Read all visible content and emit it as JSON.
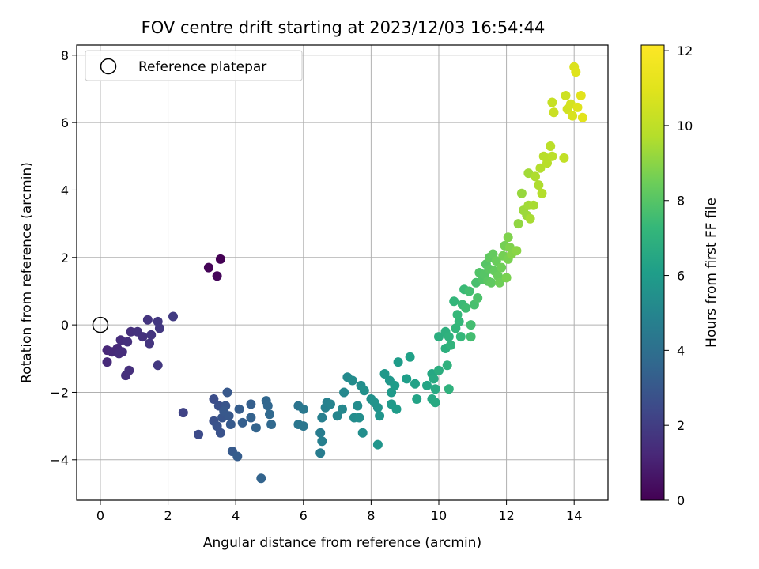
{
  "chart_data": {
    "type": "scatter",
    "title": "FOV centre drift starting at 2023/12/03 16:54:44",
    "xlabel": "Angular distance from reference (arcmin)",
    "ylabel": "Rotation from reference (arcmin)",
    "xlim": [
      -0.7,
      15.0
    ],
    "ylim": [
      -5.2,
      8.3
    ],
    "xticks": [
      0,
      2,
      4,
      6,
      8,
      10,
      12,
      14
    ],
    "yticks": [
      -4,
      -2,
      0,
      2,
      4,
      6,
      8
    ],
    "grid": true,
    "legend": {
      "position": "top-left",
      "entries": [
        "Reference platepar"
      ]
    },
    "reference_point": {
      "x": 0,
      "y": 0
    },
    "colorbar": {
      "label": "Hours from first FF file",
      "colormap": "viridis",
      "range": [
        0,
        12.15
      ],
      "ticks": [
        0,
        2,
        4,
        6,
        8,
        10,
        12
      ]
    },
    "points": [
      [
        3.55,
        1.95,
        0.0
      ],
      [
        3.2,
        1.7,
        0.1
      ],
      [
        3.45,
        1.45,
        0.2
      ],
      [
        0.2,
        -0.75,
        1.2
      ],
      [
        0.35,
        -0.8,
        1.3
      ],
      [
        0.5,
        -0.7,
        1.3
      ],
      [
        0.6,
        -0.45,
        1.4
      ],
      [
        0.2,
        -1.1,
        1.3
      ],
      [
        0.55,
        -0.85,
        1.4
      ],
      [
        0.65,
        -0.8,
        1.4
      ],
      [
        0.8,
        -0.5,
        1.5
      ],
      [
        0.9,
        -0.2,
        1.5
      ],
      [
        0.75,
        -1.5,
        1.5
      ],
      [
        0.85,
        -1.35,
        1.5
      ],
      [
        1.1,
        -0.2,
        1.6
      ],
      [
        1.25,
        -0.35,
        1.6
      ],
      [
        1.4,
        0.15,
        1.7
      ],
      [
        1.45,
        -0.55,
        1.7
      ],
      [
        1.5,
        -0.3,
        1.7
      ],
      [
        1.7,
        0.1,
        1.8
      ],
      [
        1.75,
        -0.1,
        1.8
      ],
      [
        1.7,
        -1.2,
        1.8
      ],
      [
        2.15,
        0.25,
        1.9
      ],
      [
        2.45,
        -2.6,
        2.2
      ],
      [
        2.9,
        -3.25,
        2.5
      ],
      [
        3.35,
        -2.2,
        2.6
      ],
      [
        3.5,
        -2.4,
        2.7
      ],
      [
        3.35,
        -2.85,
        2.7
      ],
      [
        3.45,
        -3.0,
        2.8
      ],
      [
        3.55,
        -3.2,
        2.8
      ],
      [
        3.6,
        -2.75,
        2.9
      ],
      [
        3.7,
        -2.4,
        2.9
      ],
      [
        3.75,
        -2.0,
        3.0
      ],
      [
        3.65,
        -2.55,
        3.0
      ],
      [
        3.8,
        -2.7,
        3.0
      ],
      [
        3.85,
        -2.95,
        3.1
      ],
      [
        3.9,
        -3.75,
        3.1
      ],
      [
        4.05,
        -3.9,
        3.2
      ],
      [
        4.1,
        -2.5,
        3.2
      ],
      [
        4.2,
        -2.9,
        3.3
      ],
      [
        4.45,
        -2.35,
        3.3
      ],
      [
        4.45,
        -2.75,
        3.4
      ],
      [
        4.6,
        -3.05,
        3.5
      ],
      [
        4.75,
        -4.55,
        3.5
      ],
      [
        4.9,
        -2.25,
        3.6
      ],
      [
        4.95,
        -2.4,
        3.6
      ],
      [
        5.0,
        -2.65,
        3.7
      ],
      [
        5.05,
        -2.95,
        3.7
      ],
      [
        5.85,
        -2.4,
        4.2
      ],
      [
        5.85,
        -2.95,
        4.3
      ],
      [
        6.0,
        -3.0,
        4.3
      ],
      [
        6.0,
        -2.5,
        4.4
      ],
      [
        6.5,
        -3.2,
        4.6
      ],
      [
        6.5,
        -3.8,
        4.6
      ],
      [
        6.55,
        -3.45,
        4.7
      ],
      [
        6.55,
        -2.75,
        4.7
      ],
      [
        6.65,
        -2.45,
        4.8
      ],
      [
        6.7,
        -2.3,
        4.8
      ],
      [
        6.8,
        -2.35,
        4.9
      ],
      [
        7.0,
        -2.7,
        5.0
      ],
      [
        7.15,
        -2.5,
        5.1
      ],
      [
        7.2,
        -2.0,
        5.1
      ],
      [
        7.3,
        -1.55,
        5.2
      ],
      [
        7.45,
        -1.65,
        5.3
      ],
      [
        7.5,
        -2.75,
        5.3
      ],
      [
        7.6,
        -2.4,
        5.3
      ],
      [
        7.65,
        -2.75,
        5.4
      ],
      [
        7.7,
        -1.8,
        5.4
      ],
      [
        7.75,
        -3.2,
        5.4
      ],
      [
        7.8,
        -1.95,
        5.5
      ],
      [
        8.0,
        -2.2,
        5.5
      ],
      [
        8.1,
        -2.3,
        5.6
      ],
      [
        8.2,
        -2.45,
        5.6
      ],
      [
        8.25,
        -2.7,
        5.7
      ],
      [
        8.2,
        -3.55,
        5.7
      ],
      [
        8.4,
        -1.45,
        5.8
      ],
      [
        8.55,
        -1.65,
        5.8
      ],
      [
        8.6,
        -2.0,
        5.9
      ],
      [
        8.6,
        -2.35,
        5.9
      ],
      [
        8.75,
        -2.5,
        6.0
      ],
      [
        8.7,
        -1.8,
        6.0
      ],
      [
        8.8,
        -1.1,
        6.0
      ],
      [
        9.05,
        -1.6,
        6.1
      ],
      [
        9.15,
        -0.95,
        6.2
      ],
      [
        9.3,
        -1.75,
        6.2
      ],
      [
        9.35,
        -2.2,
        6.3
      ],
      [
        9.65,
        -1.8,
        6.4
      ],
      [
        9.8,
        -1.45,
        6.5
      ],
      [
        9.8,
        -2.2,
        6.5
      ],
      [
        9.85,
        -1.6,
        6.6
      ],
      [
        9.9,
        -1.9,
        6.6
      ],
      [
        9.9,
        -2.3,
        6.6
      ],
      [
        10.0,
        -0.35,
        6.8
      ],
      [
        10.0,
        -1.35,
        6.8
      ],
      [
        10.2,
        -0.2,
        6.9
      ],
      [
        10.2,
        -0.7,
        6.9
      ],
      [
        10.25,
        -1.2,
        7.0
      ],
      [
        10.3,
        -0.35,
        7.0
      ],
      [
        10.3,
        -1.9,
        7.0
      ],
      [
        10.35,
        -0.6,
        7.1
      ],
      [
        10.45,
        0.7,
        7.2
      ],
      [
        10.5,
        -0.1,
        7.2
      ],
      [
        10.55,
        0.3,
        7.3
      ],
      [
        10.6,
        0.1,
        7.3
      ],
      [
        10.65,
        -0.35,
        7.3
      ],
      [
        10.7,
        0.6,
        7.4
      ],
      [
        10.75,
        1.05,
        7.4
      ],
      [
        10.8,
        0.5,
        7.5
      ],
      [
        10.9,
        1.0,
        7.6
      ],
      [
        10.95,
        -0.35,
        7.6
      ],
      [
        10.95,
        0.0,
        7.6
      ],
      [
        11.05,
        0.6,
        7.7
      ],
      [
        11.1,
        1.25,
        7.7
      ],
      [
        11.15,
        0.8,
        7.8
      ],
      [
        11.2,
        1.55,
        7.9
      ],
      [
        11.3,
        1.35,
        7.9
      ],
      [
        11.35,
        1.5,
        8.0
      ],
      [
        11.4,
        1.8,
        8.0
      ],
      [
        11.45,
        1.3,
        8.1
      ],
      [
        11.5,
        1.65,
        8.1
      ],
      [
        11.5,
        2.0,
        8.2
      ],
      [
        11.55,
        1.25,
        8.2
      ],
      [
        11.6,
        2.1,
        8.3
      ],
      [
        11.65,
        1.6,
        8.3
      ],
      [
        11.7,
        1.9,
        8.4
      ],
      [
        11.75,
        1.45,
        8.4
      ],
      [
        11.8,
        1.25,
        8.5
      ],
      [
        11.85,
        1.7,
        8.5
      ],
      [
        11.9,
        2.05,
        8.6
      ],
      [
        11.95,
        2.35,
        8.6
      ],
      [
        12.0,
        1.4,
        8.7
      ],
      [
        12.05,
        1.95,
        8.7
      ],
      [
        12.05,
        2.6,
        8.8
      ],
      [
        12.1,
        2.3,
        8.8
      ],
      [
        12.15,
        2.1,
        8.9
      ],
      [
        12.3,
        2.2,
        9.0
      ],
      [
        12.35,
        3.0,
        9.1
      ],
      [
        12.45,
        3.9,
        9.2
      ],
      [
        12.5,
        3.4,
        9.3
      ],
      [
        12.6,
        3.25,
        9.3
      ],
      [
        12.65,
        3.55,
        9.4
      ],
      [
        12.65,
        4.5,
        9.4
      ],
      [
        12.7,
        3.15,
        9.5
      ],
      [
        12.8,
        3.55,
        9.5
      ],
      [
        12.85,
        4.4,
        9.6
      ],
      [
        12.95,
        4.15,
        9.6
      ],
      [
        13.0,
        4.65,
        9.7
      ],
      [
        13.05,
        3.9,
        9.7
      ],
      [
        13.1,
        5.0,
        9.8
      ],
      [
        13.2,
        4.8,
        9.8
      ],
      [
        13.3,
        5.3,
        9.9
      ],
      [
        13.35,
        5.0,
        9.9
      ],
      [
        13.35,
        6.6,
        10.2
      ],
      [
        13.4,
        6.3,
        10.3
      ],
      [
        13.7,
        4.95,
        10.1
      ],
      [
        13.75,
        6.8,
        10.4
      ],
      [
        13.8,
        6.4,
        10.5
      ],
      [
        13.9,
        6.55,
        10.6
      ],
      [
        13.95,
        6.2,
        10.7
      ],
      [
        14.0,
        7.65,
        10.8
      ],
      [
        14.05,
        7.5,
        10.9
      ],
      [
        14.1,
        6.45,
        10.9
      ],
      [
        14.2,
        6.8,
        11.0
      ],
      [
        14.25,
        6.15,
        11.0
      ]
    ]
  }
}
